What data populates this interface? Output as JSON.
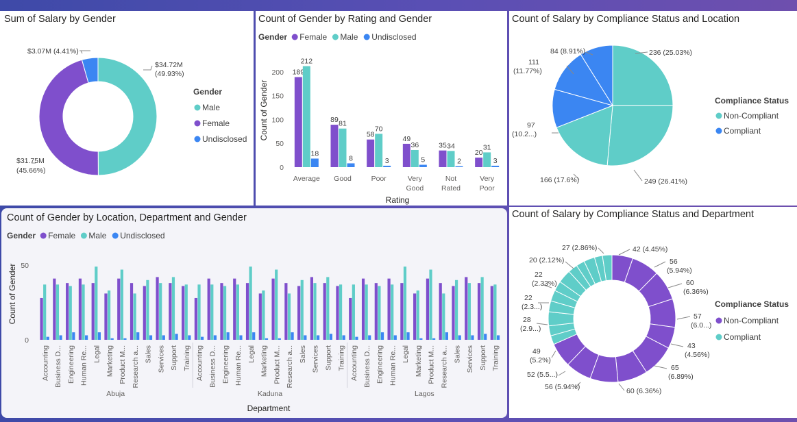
{
  "colors": {
    "female": "#7f4fcc",
    "male": "#5fcdc8",
    "undisclosed": "#3b86f2",
    "non_compliant_pie": "#5fcdc8",
    "compliant_pie": "#3b86f2",
    "non_compliant_donut": "#7f4fcc",
    "compliant_donut": "#5fcdc8"
  },
  "panels": {
    "salary_gender": {
      "title": "Sum of Salary by Gender"
    },
    "gender_rating": {
      "title": "Count of Gender by Rating and Gender"
    },
    "compliance_location": {
      "title": "Count of Salary by Compliance Status and Location"
    },
    "gender_location_dept": {
      "title": "Count of Gender by Location, Department and Gender"
    },
    "compliance_dept": {
      "title": "Count of Salary by Compliance Status and Department"
    }
  },
  "chart_data": [
    {
      "id": "salary_gender",
      "type": "pie",
      "subtype": "donut",
      "title": "Sum of Salary by Gender",
      "legend_title": "Gender",
      "legend_position": "right",
      "legend": [
        "Male",
        "Female",
        "Undisclosed"
      ],
      "slices": [
        {
          "name": "Male",
          "value": 34.72,
          "label": "$34.72M",
          "pct": "(49.93%)"
        },
        {
          "name": "Female",
          "value": 31.75,
          "label": "$31.75M",
          "pct": "(45.66%)"
        },
        {
          "name": "Undisclosed",
          "value": 3.07,
          "label": "$3.07M (4.41%)",
          "pct": ""
        }
      ]
    },
    {
      "id": "gender_rating",
      "type": "bar",
      "title": "Count of Gender by Rating and Gender",
      "legend_title": "Gender",
      "legend_position": "top-left",
      "xlabel": "Rating",
      "ylabel": "Count of Gender",
      "ylim": [
        0,
        230
      ],
      "yticks": [
        0,
        50,
        100,
        150,
        200
      ],
      "categories": [
        [
          "Average"
        ],
        [
          "Good"
        ],
        [
          "Poor"
        ],
        [
          "Very",
          "Good"
        ],
        [
          "Not",
          "Rated"
        ],
        [
          "Very",
          "Poor"
        ]
      ],
      "series": [
        {
          "name": "Female",
          "values": [
            189,
            89,
            58,
            49,
            35,
            20
          ]
        },
        {
          "name": "Male",
          "values": [
            212,
            81,
            70,
            36,
            34,
            31
          ]
        },
        {
          "name": "Undisclosed",
          "values": [
            18,
            8,
            3,
            5,
            2,
            3
          ]
        }
      ]
    },
    {
      "id": "compliance_location",
      "type": "pie",
      "title": "Count of Salary by Compliance Status and Location",
      "legend_title": "Compliance Status",
      "legend_position": "right",
      "legend": [
        "Non-Compliant",
        "Compliant"
      ],
      "slices": [
        {
          "status": "Non-Compliant",
          "value": 236,
          "label": "236 (25.03%)"
        },
        {
          "status": "Non-Compliant",
          "value": 249,
          "label": "249 (26.41%)"
        },
        {
          "status": "Non-Compliant",
          "value": 166,
          "label": "166 (17.6%)"
        },
        {
          "status": "Compliant",
          "value": 97,
          "label": "97",
          "label2": "(10.2...)"
        },
        {
          "status": "Compliant",
          "value": 111,
          "label": "111",
          "label2": "(11.77%)"
        },
        {
          "status": "Compliant",
          "value": 84,
          "label": "84 (8.91%)"
        }
      ]
    },
    {
      "id": "gender_location_dept",
      "type": "bar",
      "title": "Count of Gender by Location, Department and Gender",
      "legend_title": "Gender",
      "legend_position": "top-left",
      "xlabel": "Department",
      "ylabel": "Count of Gender",
      "ylim": [
        0,
        55
      ],
      "yticks": [
        0,
        50
      ],
      "groups": [
        "Abuja",
        "Kaduna",
        "Lagos"
      ],
      "categories": [
        "Accounting",
        "Business D...",
        "Engineering",
        "Human Re...",
        "Legal",
        "Marketing",
        "Product M...",
        "Research a...",
        "Sales",
        "Services",
        "Support",
        "Training"
      ],
      "series": [
        {
          "name": "Female",
          "values": [
            28,
            41,
            38,
            41,
            38,
            31,
            41,
            38,
            36,
            42,
            38,
            36
          ]
        },
        {
          "name": "Male",
          "values": [
            37,
            37,
            36,
            37,
            49,
            33,
            47,
            31,
            40,
            38,
            42,
            37
          ]
        },
        {
          "name": "Undisclosed",
          "values": [
            2,
            3,
            5,
            3,
            5,
            1,
            1,
            5,
            3,
            3,
            4,
            3
          ]
        }
      ]
    },
    {
      "id": "compliance_dept",
      "type": "pie",
      "subtype": "donut",
      "title": "Count of Salary by Compliance Status and Department",
      "legend_title": "Compliance Status",
      "legend_position": "right",
      "legend": [
        "Non-Compliant",
        "Compliant"
      ],
      "slices": [
        {
          "status": "Non-Compliant",
          "value": 42,
          "label": "42 (4.45%)"
        },
        {
          "status": "Non-Compliant",
          "value": 56,
          "label": "56",
          "label2": "(5.94%)"
        },
        {
          "status": "Non-Compliant",
          "value": 60,
          "label": "60",
          "label2": "(6.36%)"
        },
        {
          "status": "Non-Compliant",
          "value": 57,
          "label": "57",
          "label2": "(6.0...)"
        },
        {
          "status": "Non-Compliant",
          "value": 43,
          "label": "43",
          "label2": "(4.56%)"
        },
        {
          "status": "Non-Compliant",
          "value": 65,
          "label": "65",
          "label2": "(6.89%)"
        },
        {
          "status": "Non-Compliant",
          "value": 60,
          "label": "60 (6.36%)"
        },
        {
          "status": "Non-Compliant",
          "value": 56,
          "label": "56 (5.94%)"
        },
        {
          "status": "Non-Compliant",
          "value": 52,
          "label": "52 (5.5...)"
        },
        {
          "status": "Non-Compliant",
          "value": 49,
          "label": "49",
          "label2": "(5.2%)"
        },
        {
          "status": "Compliant",
          "value": 18,
          "label": ""
        },
        {
          "status": "Compliant",
          "value": 20,
          "label": ""
        },
        {
          "status": "Compliant",
          "value": 28,
          "label": "28",
          "label2": "(2.9...)"
        },
        {
          "status": "Compliant",
          "value": 22,
          "label": "22",
          "label2": "(2.3...)"
        },
        {
          "status": "Compliant",
          "value": 22,
          "label": "22",
          "label2": "(2.33%)"
        },
        {
          "status": "Compliant",
          "value": 20,
          "label": "20 (2.12%)"
        },
        {
          "status": "Compliant",
          "value": 27,
          "label": "27 (2.86%)"
        },
        {
          "status": "Compliant",
          "value": 19,
          "label": ""
        },
        {
          "status": "Compliant",
          "value": 17,
          "label": ""
        },
        {
          "status": "Compliant",
          "value": 22,
          "label": ""
        },
        {
          "status": "Compliant",
          "value": 16,
          "label": ""
        },
        {
          "status": "Compliant",
          "value": 19,
          "label": ""
        }
      ]
    }
  ]
}
